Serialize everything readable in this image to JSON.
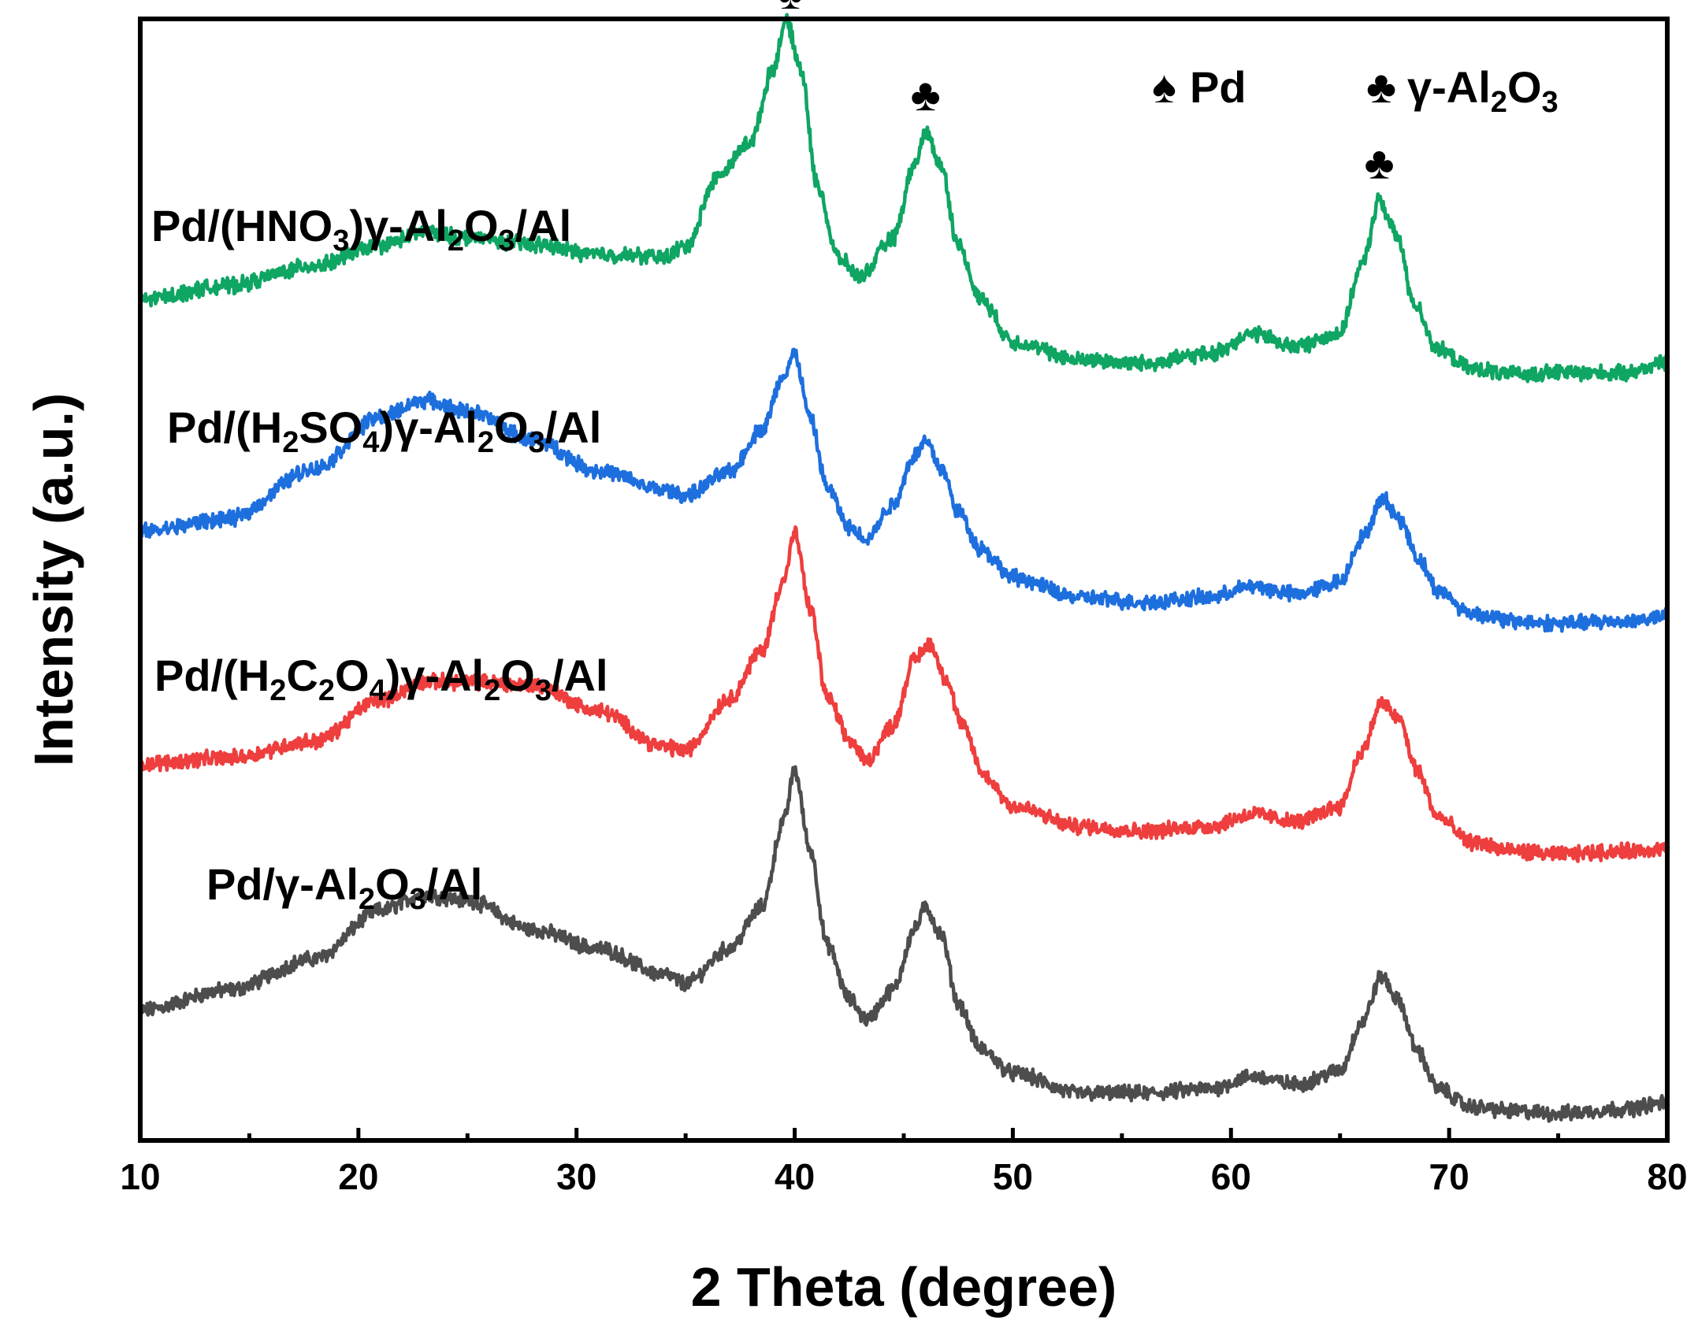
{
  "chart_data": {
    "type": "line",
    "title": "",
    "xlabel": "2 Theta (degree)",
    "ylabel": "Intensity (a.u.)",
    "xlim": [
      10,
      80
    ],
    "xticks": [
      10,
      20,
      30,
      40,
      50,
      60,
      70,
      80
    ],
    "minor_xticks": [
      15,
      25,
      35,
      45,
      55,
      65,
      75
    ],
    "ylim": [
      0,
      10
    ],
    "y_units": "arbitrary units (stacked, offset traces)",
    "legend": [
      {
        "symbol": "♠",
        "label": "Pd"
      },
      {
        "symbol": "♣",
        "label": "γ-Al2O3"
      }
    ],
    "peak_markers": [
      {
        "x": 39.8,
        "symbol": "♠",
        "phase": "Pd",
        "series": "Pd/(HNO3)γ-Al2O3/Al"
      },
      {
        "x": 46.0,
        "symbol": "♣",
        "phase": "γ-Al2O3",
        "series": "Pd/(HNO3)γ-Al2O3/Al"
      },
      {
        "x": 66.8,
        "symbol": "♣",
        "phase": "γ-Al2O3",
        "series": "Pd/(HNO3)γ-Al2O3/Al"
      }
    ],
    "series": [
      {
        "name": "Pd/γ-Al2O3/Al",
        "color": "#4d4d4d",
        "x": [
          10,
          14,
          18,
          21,
          23,
          25,
          28,
          31,
          34,
          35,
          37,
          38.5,
          39.5,
          40,
          40.7,
          41.5,
          42.5,
          43.3,
          44.5,
          45.5,
          46,
          46.7,
          47.5,
          48.5,
          50,
          53,
          56,
          59,
          61,
          63,
          65,
          66,
          66.9,
          67.7,
          68.5,
          69.5,
          71,
          73,
          75,
          78,
          80
        ],
        "values": [
          1.16,
          1.34,
          1.62,
          2.05,
          2.19,
          2.14,
          1.88,
          1.71,
          1.48,
          1.4,
          1.71,
          2.08,
          2.85,
          3.3,
          2.6,
          1.74,
          1.26,
          1.08,
          1.34,
          1.88,
          2.08,
          1.84,
          1.22,
          0.82,
          0.6,
          0.42,
          0.42,
          0.46,
          0.57,
          0.5,
          0.62,
          1.05,
          1.46,
          1.24,
          0.81,
          0.46,
          0.3,
          0.26,
          0.24,
          0.28,
          0.34
        ]
      },
      {
        "name": "Pd/(H2C2O4)γ-Al2O3/Al",
        "color": "#ee3e3e",
        "x": [
          10,
          14,
          18,
          21,
          23,
          25,
          28,
          31,
          34,
          35,
          37,
          38.5,
          39.5,
          40,
          40.7,
          41.5,
          42.5,
          43.3,
          44.5,
          45.5,
          46.2,
          46.9,
          47.7,
          48.7,
          50,
          53,
          56,
          59,
          61,
          63,
          65,
          66,
          66.9,
          67.7,
          68.5,
          69.5,
          71,
          73,
          75,
          78,
          80
        ],
        "values": [
          3.36,
          3.41,
          3.56,
          3.93,
          4.09,
          4.09,
          4.06,
          3.83,
          3.51,
          3.48,
          3.94,
          4.37,
          5.0,
          5.41,
          4.75,
          3.95,
          3.57,
          3.39,
          3.7,
          4.29,
          4.43,
          4.13,
          3.69,
          3.25,
          2.98,
          2.8,
          2.76,
          2.8,
          2.91,
          2.84,
          2.98,
          3.47,
          3.9,
          3.76,
          3.31,
          2.88,
          2.66,
          2.58,
          2.55,
          2.58,
          2.6
        ]
      },
      {
        "name": "Pd/(H2SO4)γ-Al2O3/Al",
        "color": "#1e6fde",
        "x": [
          10,
          14,
          18,
          21,
          23,
          25,
          28,
          31,
          34,
          35,
          37,
          38.5,
          39.5,
          40,
          40.7,
          41.5,
          42.5,
          43.3,
          44.5,
          45.5,
          46,
          46.7,
          47.5,
          48.5,
          50,
          53,
          56,
          59,
          61,
          63,
          65,
          66,
          67,
          67.8,
          68.6,
          69.5,
          71,
          73,
          75,
          78,
          80
        ],
        "values": [
          5.43,
          5.54,
          5.99,
          6.45,
          6.6,
          6.5,
          6.25,
          5.97,
          5.8,
          5.75,
          5.96,
          6.34,
          6.82,
          7.02,
          6.44,
          5.82,
          5.46,
          5.37,
          5.67,
          6.11,
          6.24,
          6.0,
          5.61,
          5.28,
          5.02,
          4.84,
          4.8,
          4.84,
          4.94,
          4.87,
          4.98,
          5.37,
          5.72,
          5.52,
          5.18,
          4.9,
          4.7,
          4.63,
          4.61,
          4.63,
          4.67
        ]
      },
      {
        "name": "Pd/(HNO3)γ-Al2O3/Al",
        "color": "#0fa563",
        "x": [
          10,
          14,
          18,
          21,
          23,
          25,
          28,
          31,
          34,
          35,
          36.5,
          38,
          39,
          39.6,
          40.3,
          41,
          42,
          43,
          44.5,
          45.5,
          46,
          46.7,
          47.5,
          48.5,
          50,
          53,
          56,
          59,
          61,
          63,
          65,
          66,
          66.8,
          67.6,
          68.4,
          69.5,
          71,
          73,
          75,
          78,
          80
        ],
        "values": [
          7.5,
          7.62,
          7.8,
          7.98,
          8.1,
          8.05,
          7.99,
          7.9,
          7.88,
          7.97,
          8.6,
          8.91,
          9.55,
          9.98,
          9.55,
          8.54,
          7.87,
          7.7,
          8.04,
          8.7,
          8.99,
          8.7,
          7.98,
          7.51,
          7.12,
          6.96,
          6.93,
          7.01,
          7.19,
          7.08,
          7.2,
          7.8,
          8.38,
          8.07,
          7.46,
          7.05,
          6.88,
          6.83,
          6.85,
          6.84,
          6.94
        ]
      }
    ],
    "annotations": [
      {
        "text": "Pd/γ-Al2O3/Al",
        "series": "Pd/γ-Al2O3/Al"
      },
      {
        "text": "Pd/(H2C2O4)γ-Al2O3/Al",
        "series": "Pd/(H2C2O4)γ-Al2O3/Al"
      },
      {
        "text": "Pd/(H2SO4)γ-Al2O3/Al",
        "series": "Pd/(H2SO4)γ-Al2O3/Al"
      },
      {
        "text": "Pd/(HNO3)γ-Al2O3/Al",
        "series": "Pd/(HNO3)γ-Al2O3/Al"
      }
    ]
  }
}
